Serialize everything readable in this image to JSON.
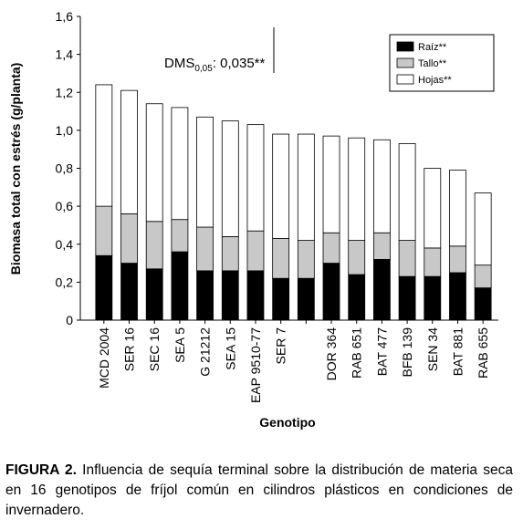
{
  "chart_data": {
    "type": "stacked_bar",
    "y_label": "Biomasa total con estrés (g/planta)",
    "x_label": "Genotipo",
    "categories": [
      "MCD 2004",
      "SER 16",
      "SEC 16",
      "SEA 5",
      "G 21212",
      "SEA 15",
      "EAP 9510-77",
      "SER 7",
      null,
      "DOR 364",
      "RAB 651",
      "BAT 477",
      "BFB 139",
      "SEN 34",
      "BAT 881",
      "RAB 655"
    ],
    "series": [
      {
        "name": "Raíz**",
        "color": "#000000",
        "values": [
          0.34,
          0.3,
          0.27,
          0.36,
          0.26,
          0.26,
          0.26,
          0.22,
          0.22,
          0.3,
          0.24,
          0.32,
          0.23,
          0.23,
          0.25,
          0.17
        ]
      },
      {
        "name": "Tallo**",
        "color": "#c8c8c8",
        "values": [
          0.26,
          0.26,
          0.25,
          0.17,
          0.23,
          0.18,
          0.21,
          0.21,
          0.2,
          0.16,
          0.18,
          0.14,
          0.19,
          0.15,
          0.14,
          0.12
        ]
      },
      {
        "name": "Hojas**",
        "color": "#ffffff",
        "values": [
          0.64,
          0.65,
          0.62,
          0.59,
          0.58,
          0.61,
          0.56,
          0.55,
          0.56,
          0.51,
          0.54,
          0.49,
          0.51,
          0.42,
          0.4,
          0.38
        ]
      }
    ],
    "ylim": [
      0,
      1.6
    ],
    "yticks": [
      0,
      {
        "value": 0.2,
        "label": "0,2"
      },
      {
        "value": 0.4,
        "label": "0,4"
      },
      {
        "value": 0.6,
        "label": "0,6"
      },
      {
        "value": 0.8,
        "label": "0,8"
      },
      {
        "value": 1.0,
        "label": "1,0"
      },
      {
        "value": 1.2,
        "label": "1,2"
      },
      {
        "value": 1.4,
        "label": "1,4"
      },
      {
        "value": 1.6,
        "label": "1,6"
      }
    ],
    "annotation": {
      "main": "DMS",
      "sub": "0,05",
      "rest": ": 0,035**"
    },
    "legend": "upper right"
  },
  "caption": {
    "label": "FIGURA 2.",
    "text": " Influencia de sequía terminal sobre la distribución de materia seca en 16 genotipos de fríjol común en cilindros plásticos en condiciones de invernadero."
  }
}
